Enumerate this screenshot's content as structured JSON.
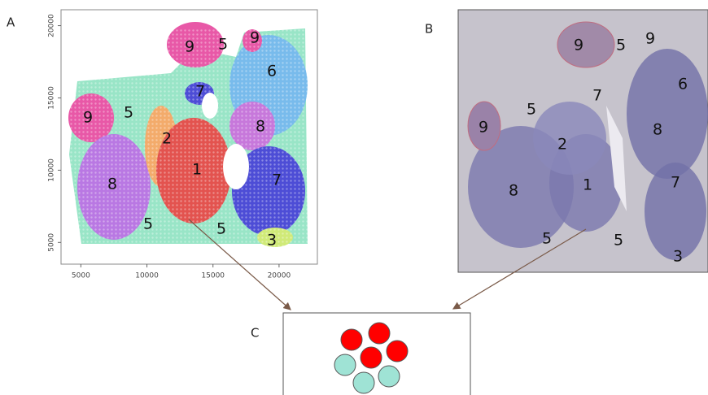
{
  "panel_a": {
    "label": "A",
    "xlim": [
      3500,
      22900
    ],
    "xticks": [
      5000,
      10000,
      15000,
      20000
    ],
    "ylim": [
      3500,
      21100
    ],
    "yticks": [
      5000,
      10000,
      15000,
      20000
    ],
    "cluster_labels": [
      "9",
      "5",
      "9",
      "6",
      "7",
      "9",
      "5",
      "8",
      "2",
      "1",
      "8",
      "7",
      "5",
      "5",
      "3"
    ]
  },
  "panel_b": {
    "label": "B",
    "cluster_labels": [
      "9",
      "5",
      "9",
      "6",
      "7",
      "5",
      "9",
      "8",
      "2",
      "8",
      "1",
      "7",
      "5",
      "5",
      "3"
    ]
  },
  "panel_c": {
    "label": "C"
  }
}
